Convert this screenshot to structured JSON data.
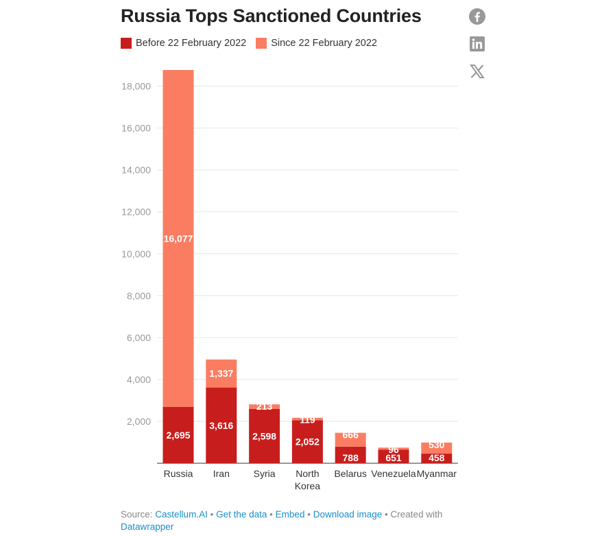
{
  "title": "Russia Tops Sanctioned Countries",
  "legend": [
    {
      "label": "Before 22 February 2022",
      "color": "#c71e1d"
    },
    {
      "label": "Since 22 February 2022",
      "color": "#fa7d62"
    }
  ],
  "share_icons": [
    "facebook-icon",
    "linkedin-icon",
    "x-icon"
  ],
  "chart_data": {
    "type": "bar",
    "stacked": true,
    "categories": [
      "Russia",
      "Iran",
      "Syria",
      "North Korea",
      "Belarus",
      "Venezuela",
      "Myanmar"
    ],
    "category_lines": [
      [
        "Russia"
      ],
      [
        "Iran"
      ],
      [
        "Syria"
      ],
      [
        "North",
        "Korea"
      ],
      [
        "Belarus"
      ],
      [
        "Venezuela"
      ],
      [
        "Myanmar"
      ]
    ],
    "series": [
      {
        "name": "Before 22 February 2022",
        "color": "#c71e1d",
        "values": [
          2695,
          3616,
          2598,
          2052,
          788,
          651,
          458
        ]
      },
      {
        "name": "Since 22 February 2022",
        "color": "#fa7d62",
        "values": [
          16077,
          1337,
          213,
          119,
          666,
          96,
          530
        ]
      }
    ],
    "value_labels": {
      "before": [
        "2,695",
        "3,616",
        "2,598",
        "2,052",
        "788",
        "651",
        "458"
      ],
      "since": [
        "16,077",
        "1,337",
        "213",
        "119",
        "666",
        "96",
        "530"
      ]
    },
    "yticks": [
      2000,
      4000,
      6000,
      8000,
      10000,
      12000,
      14000,
      16000,
      18000
    ],
    "ytick_labels": [
      "2,000",
      "4,000",
      "6,000",
      "8,000",
      "10,000",
      "12,000",
      "14,000",
      "16,000",
      "18,000"
    ],
    "ylim": [
      0,
      18772
    ],
    "grid": true,
    "legend_position": "top-left"
  },
  "footer": {
    "source_prefix": "Source:",
    "source_name": "Castellum.AI",
    "sep": "•",
    "get_data": "Get the data",
    "embed": "Embed",
    "download": "Download image",
    "created_with": "Created with",
    "datawrapper": "Datawrapper"
  }
}
